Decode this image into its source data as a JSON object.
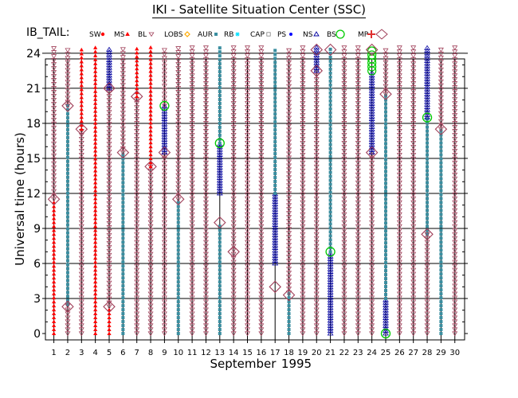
{
  "title": "IKI - Satellite Situation Center (SSC)",
  "chart_data": {
    "type": "scatter",
    "panel_label": "IB_TAIL:",
    "legend": [
      "SW",
      "MS",
      "BL",
      "LOBS",
      "AUR",
      "RB",
      "CAP",
      "PS",
      "NS",
      "BS",
      "MP"
    ],
    "ylabel": "Universal time (hours)",
    "ylim": [
      0,
      24
    ],
    "yticks": [
      0,
      3,
      6,
      9,
      12,
      15,
      18,
      21,
      24
    ],
    "xlabel_month": "September",
    "xlabel_year": "1995",
    "days": [
      1,
      2,
      3,
      4,
      5,
      6,
      7,
      8,
      9,
      10,
      11,
      12,
      13,
      14,
      15,
      16,
      17,
      18,
      19,
      20,
      21,
      22,
      23,
      24,
      25,
      26,
      27,
      28,
      29,
      30
    ],
    "segments": [
      {
        "day": 1,
        "region": "MS",
        "from": 0,
        "to": 11.5
      },
      {
        "day": 1,
        "region": "BL",
        "from": 11.5,
        "to": 24.5
      },
      {
        "day": 2,
        "region": "AUR",
        "from": 2.5,
        "to": 19.5
      },
      {
        "day": 2,
        "region": "BL",
        "from": 0,
        "to": 2.5
      },
      {
        "day": 2,
        "region": "BL",
        "from": 19.5,
        "to": 24.5
      },
      {
        "day": 3,
        "region": "BL",
        "from": 0,
        "to": 17.5
      },
      {
        "day": 3,
        "region": "MS",
        "from": 17.5,
        "to": 24.5
      },
      {
        "day": 4,
        "region": "MS",
        "from": 0,
        "to": 24.5
      },
      {
        "day": 5,
        "region": "MS",
        "from": 0,
        "to": 2.3
      },
      {
        "day": 5,
        "region": "BL",
        "from": 2.3,
        "to": 21
      },
      {
        "day": 5,
        "region": "NS",
        "from": 21,
        "to": 24.5
      },
      {
        "day": 6,
        "region": "AUR",
        "from": 0,
        "to": 15.5
      },
      {
        "day": 6,
        "region": "BL",
        "from": 15.5,
        "to": 24.5
      },
      {
        "day": 7,
        "region": "BL",
        "from": 0,
        "to": 20.3
      },
      {
        "day": 7,
        "region": "MS",
        "from": 20.3,
        "to": 24.5
      },
      {
        "day": 8,
        "region": "BL",
        "from": 0,
        "to": 14.3
      },
      {
        "day": 8,
        "region": "MS",
        "from": 14.3,
        "to": 24.5
      },
      {
        "day": 9,
        "region": "BL",
        "from": 0,
        "to": 15.5
      },
      {
        "day": 9,
        "region": "NS",
        "from": 15.5,
        "to": 19.5
      },
      {
        "day": 9,
        "region": "BL",
        "from": 19.5,
        "to": 24.5
      },
      {
        "day": 10,
        "region": "AUR",
        "from": 0,
        "to": 11.5
      },
      {
        "day": 10,
        "region": "BL",
        "from": 11.5,
        "to": 24.5
      },
      {
        "day": 11,
        "region": "BL",
        "from": 0,
        "to": 24.5
      },
      {
        "day": 12,
        "region": "BL",
        "from": 0,
        "to": 24.5
      },
      {
        "day": 13,
        "region": "AUR",
        "from": 0,
        "to": 9.5
      },
      {
        "day": 13,
        "region": "NS",
        "from": 12,
        "to": 16.3
      },
      {
        "day": 13,
        "region": "AUR",
        "from": 16.3,
        "to": 24.5
      },
      {
        "day": 14,
        "region": "BL",
        "from": 0,
        "to": 24.5
      },
      {
        "day": 15,
        "region": "BL",
        "from": 0,
        "to": 24.5
      },
      {
        "day": 16,
        "region": "BL",
        "from": 0,
        "to": 24.5
      },
      {
        "day": 17,
        "region": "NS",
        "from": 6,
        "to": 12
      },
      {
        "day": 17,
        "region": "AUR",
        "from": 12,
        "to": 24.5
      },
      {
        "day": 18,
        "region": "AUR",
        "from": 0,
        "to": 3.5
      },
      {
        "day": 18,
        "region": "BL",
        "from": 3.5,
        "to": 24.5
      },
      {
        "day": 19,
        "region": "BL",
        "from": 0,
        "to": 24.5
      },
      {
        "day": 20,
        "region": "BL",
        "from": 0,
        "to": 22.5
      },
      {
        "day": 20,
        "region": "NS",
        "from": 22.5,
        "to": 24.5
      },
      {
        "day": 21,
        "region": "NS",
        "from": 0,
        "to": 7
      },
      {
        "day": 21,
        "region": "AUR",
        "from": 7,
        "to": 24.5
      },
      {
        "day": 22,
        "region": "BL",
        "from": 0,
        "to": 24.5
      },
      {
        "day": 23,
        "region": "BL",
        "from": 0,
        "to": 24.5
      },
      {
        "day": 24,
        "region": "BL",
        "from": 0,
        "to": 15.5
      },
      {
        "day": 24,
        "region": "NS",
        "from": 15.5,
        "to": 22.5
      },
      {
        "day": 24,
        "region": "BS",
        "from": 22.5,
        "to": 24.5
      },
      {
        "day": 25,
        "region": "NS",
        "from": 0,
        "to": 3
      },
      {
        "day": 25,
        "region": "AUR",
        "from": 3,
        "to": 20.5
      },
      {
        "day": 25,
        "region": "BL",
        "from": 20.5,
        "to": 24.5
      },
      {
        "day": 26,
        "region": "BL",
        "from": 0,
        "to": 24.5
      },
      {
        "day": 27,
        "region": "BL",
        "from": 0,
        "to": 24.5
      },
      {
        "day": 28,
        "region": "AUR",
        "from": 8.5,
        "to": 18.5
      },
      {
        "day": 28,
        "region": "NS",
        "from": 18.5,
        "to": 24.5
      },
      {
        "day": 28,
        "region": "BL",
        "from": 0,
        "to": 8.5
      },
      {
        "day": 29,
        "region": "AUR",
        "from": 0,
        "to": 17.5
      },
      {
        "day": 29,
        "region": "BL",
        "from": 17.5,
        "to": 24.5
      },
      {
        "day": 30,
        "region": "BL",
        "from": 0,
        "to": 24.5
      }
    ],
    "events": [
      {
        "day": 1,
        "region": "MP",
        "time": 11.5
      },
      {
        "day": 2,
        "region": "MP",
        "time": 2.3
      },
      {
        "day": 2,
        "region": "MP",
        "time": 19.5
      },
      {
        "day": 3,
        "region": "MP",
        "time": 17.5
      },
      {
        "day": 5,
        "region": "MP",
        "time": 2.3
      },
      {
        "day": 5,
        "region": "MP",
        "time": 21
      },
      {
        "day": 6,
        "region": "MP",
        "time": 15.5
      },
      {
        "day": 7,
        "region": "MP",
        "time": 20.3
      },
      {
        "day": 8,
        "region": "MP",
        "time": 14.3
      },
      {
        "day": 9,
        "region": "MP",
        "time": 15.5
      },
      {
        "day": 9,
        "region": "BS",
        "time": 19.5
      },
      {
        "day": 10,
        "region": "MP",
        "time": 11.5
      },
      {
        "day": 13,
        "region": "MP",
        "time": 9.5
      },
      {
        "day": 13,
        "region": "BS",
        "time": 16.3
      },
      {
        "day": 14,
        "region": "MP",
        "time": 7
      },
      {
        "day": 17,
        "region": "MP",
        "time": 4
      },
      {
        "day": 18,
        "region": "MP",
        "time": 3.3
      },
      {
        "day": 20,
        "region": "MP",
        "time": 22.5
      },
      {
        "day": 20,
        "region": "MP",
        "time": 24.3
      },
      {
        "day": 21,
        "region": "BS",
        "time": 7
      },
      {
        "day": 21,
        "region": "MP",
        "time": 24.3
      },
      {
        "day": 24,
        "region": "MP",
        "time": 15.5
      },
      {
        "day": 24,
        "region": "MP",
        "time": 24.3
      },
      {
        "day": 25,
        "region": "BS",
        "time": 0
      },
      {
        "day": 25,
        "region": "MP",
        "time": 20.5
      },
      {
        "day": 28,
        "region": "BS",
        "time": 18.5
      },
      {
        "day": 28,
        "region": "MP",
        "time": 8.5
      },
      {
        "day": 29,
        "region": "MP",
        "time": 17.5
      }
    ],
    "colors": {
      "SW": "#ff0000",
      "MS": "#ff0000",
      "BL": "#a0405a",
      "LOBS": "#ffaa00",
      "AUR": "#3a8ea0",
      "RB": "#00e0ff",
      "CAP": "#808080",
      "PS": "#0000ff",
      "NS": "#0000a0",
      "BS": "#00cc00",
      "MP": "#a0405a"
    }
  }
}
